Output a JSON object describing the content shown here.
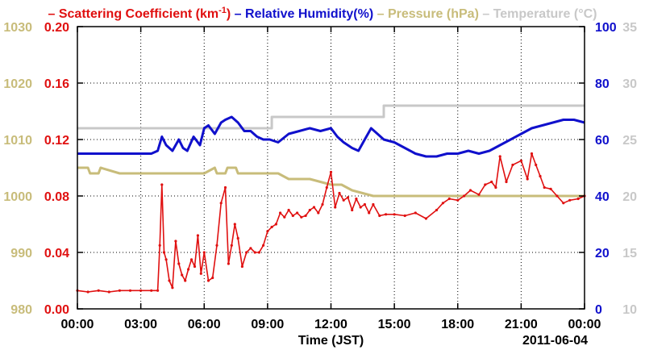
{
  "legend": [
    {
      "text": "– Scattering Coefficient (km",
      "sup": "-1",
      "tail": ")",
      "color": "#e01010"
    },
    {
      "text": "– Relative Humidity(%)",
      "sup": "",
      "tail": "",
      "color": "#1010cc"
    },
    {
      "text": "– Pressure (hPa)",
      "sup": "",
      "tail": "",
      "color": "#c8bc7a"
    },
    {
      "text": "– Temperature (°C)",
      "sup": "",
      "tail": "",
      "color": "#c8c8c8"
    }
  ],
  "colors": {
    "scattering": "#e01010",
    "humidity": "#1010cc",
    "pressure": "#c8bc7a",
    "temperature": "#c8c8c8",
    "grid": "#000000"
  },
  "chart_data": {
    "type": "line",
    "xlabel": "Time (JST)",
    "date_label": "2011-06-04",
    "x_ticks": [
      "00:00",
      "03:00",
      "06:00",
      "09:00",
      "12:00",
      "15:00",
      "18:00",
      "21:00",
      "00:00"
    ],
    "x_range_hours": [
      0,
      24
    ],
    "grid": true,
    "legend_position": "top",
    "axes": {
      "pressure": {
        "side": "left-outer",
        "range": [
          980,
          1030
        ],
        "ticks": [
          "980",
          "990",
          "1000",
          "1010",
          "1020",
          "1030"
        ]
      },
      "scattering": {
        "side": "left-inner",
        "range": [
          0,
          0.2
        ],
        "ticks": [
          "0.00",
          "0.04",
          "0.08",
          "0.12",
          "0.16",
          "0.20"
        ]
      },
      "humidity": {
        "side": "right-inner",
        "range": [
          0,
          100
        ],
        "ticks": [
          "0",
          "20",
          "40",
          "60",
          "80",
          "100"
        ]
      },
      "temperature": {
        "side": "right-outer",
        "range": [
          10,
          35
        ],
        "ticks": [
          "10",
          "15",
          "20",
          "25",
          "30",
          "35"
        ]
      }
    },
    "series": [
      {
        "name": "Scattering Coefficient (km-1)",
        "axis": "scattering",
        "markers": true,
        "x": [
          0,
          0.5,
          1,
          1.5,
          2,
          2.5,
          3,
          3.5,
          3.8,
          3.9,
          4.0,
          4.1,
          4.2,
          4.35,
          4.5,
          4.65,
          4.8,
          4.95,
          5.1,
          5.25,
          5.4,
          5.55,
          5.7,
          5.85,
          6.0,
          6.2,
          6.4,
          6.6,
          6.8,
          7.0,
          7.15,
          7.3,
          7.45,
          7.6,
          7.8,
          8.0,
          8.2,
          8.4,
          8.6,
          8.8,
          9.0,
          9.2,
          9.4,
          9.6,
          9.8,
          10.0,
          10.2,
          10.4,
          10.6,
          10.8,
          11.0,
          11.2,
          11.4,
          11.6,
          11.8,
          12.0,
          12.2,
          12.4,
          12.6,
          12.8,
          13.0,
          13.2,
          13.4,
          13.6,
          13.8,
          14.0,
          14.3,
          14.6,
          15.0,
          15.5,
          16.0,
          16.5,
          17.0,
          17.3,
          17.6,
          18.0,
          18.3,
          18.6,
          19.0,
          19.3,
          19.6,
          19.8,
          20.0,
          20.3,
          20.6,
          21.0,
          21.3,
          21.5,
          21.7,
          21.9,
          22.1,
          22.4,
          22.7,
          23.0,
          23.3,
          23.7,
          24.0
        ],
        "y": [
          0.013,
          0.012,
          0.013,
          0.012,
          0.013,
          0.013,
          0.013,
          0.013,
          0.013,
          0.045,
          0.088,
          0.04,
          0.035,
          0.02,
          0.015,
          0.048,
          0.032,
          0.024,
          0.02,
          0.028,
          0.035,
          0.03,
          0.052,
          0.025,
          0.04,
          0.02,
          0.022,
          0.045,
          0.075,
          0.086,
          0.032,
          0.045,
          0.06,
          0.05,
          0.03,
          0.04,
          0.043,
          0.04,
          0.04,
          0.045,
          0.055,
          0.058,
          0.06,
          0.068,
          0.065,
          0.07,
          0.066,
          0.068,
          0.065,
          0.066,
          0.07,
          0.072,
          0.068,
          0.074,
          0.086,
          0.097,
          0.072,
          0.082,
          0.077,
          0.079,
          0.07,
          0.078,
          0.072,
          0.074,
          0.068,
          0.074,
          0.066,
          0.067,
          0.067,
          0.066,
          0.068,
          0.064,
          0.07,
          0.075,
          0.078,
          0.077,
          0.08,
          0.084,
          0.081,
          0.088,
          0.09,
          0.086,
          0.108,
          0.09,
          0.102,
          0.105,
          0.092,
          0.11,
          0.102,
          0.094,
          0.086,
          0.085,
          0.08,
          0.075,
          0.077,
          0.078,
          0.08
        ]
      },
      {
        "name": "Relative Humidity(%)",
        "axis": "humidity",
        "markers": false,
        "x": [
          0,
          3.5,
          3.8,
          4.0,
          4.2,
          4.5,
          4.8,
          5.0,
          5.2,
          5.5,
          5.8,
          6.0,
          6.2,
          6.5,
          6.8,
          7.0,
          7.3,
          7.6,
          7.9,
          8.2,
          8.5,
          8.8,
          9.1,
          9.5,
          10.0,
          10.5,
          11.0,
          11.5,
          12.0,
          12.3,
          12.6,
          13.0,
          13.3,
          13.6,
          13.9,
          14.2,
          14.5,
          15.0,
          15.5,
          16.0,
          16.5,
          17.0,
          17.5,
          18.0,
          18.5,
          19.0,
          19.5,
          20.0,
          20.5,
          21.0,
          21.5,
          22.0,
          22.5,
          23.0,
          23.5,
          24.0
        ],
        "y": [
          55,
          55,
          56,
          61,
          58,
          56,
          60,
          57,
          56,
          61,
          58,
          64,
          65,
          62,
          66,
          67,
          68,
          66,
          63,
          63,
          61,
          60,
          60,
          59,
          62,
          63,
          64,
          63,
          64,
          61,
          59,
          57,
          56,
          60,
          64,
          62,
          60,
          59,
          57,
          55,
          54,
          54,
          55,
          55,
          56,
          55,
          56,
          58,
          60,
          62,
          64,
          65,
          66,
          67,
          67,
          66
        ]
      },
      {
        "name": "Pressure (hPa)",
        "axis": "pressure",
        "markers": false,
        "x": [
          0,
          0.5,
          0.6,
          1.0,
          1.1,
          2.0,
          4.0,
          6.0,
          6.5,
          6.6,
          7.0,
          7.1,
          7.5,
          7.6,
          8.0,
          9.0,
          9.5,
          10.0,
          11.0,
          12.0,
          12.5,
          13.0,
          14.0,
          15.0,
          16.0,
          17.0,
          18.0,
          19.0,
          20.0,
          21.0,
          22.0,
          23.0,
          24.0
        ],
        "y": [
          1005,
          1005,
          1004,
          1004,
          1005,
          1004,
          1004,
          1004,
          1005,
          1004,
          1004,
          1005,
          1005,
          1004,
          1004,
          1004,
          1004,
          1003,
          1003,
          1002,
          1002,
          1001,
          1000,
          1000,
          1000,
          1000,
          1000,
          1000,
          1000,
          1000,
          1000,
          1000,
          1000
        ]
      },
      {
        "name": "Temperature (°C)",
        "axis": "temperature",
        "markers": false,
        "x": [
          0,
          9.2,
          9.2,
          14.5,
          14.5,
          18.0,
          18.0,
          24.0
        ],
        "y": [
          26,
          26,
          27,
          27,
          28,
          28,
          28,
          28
        ]
      }
    ]
  }
}
